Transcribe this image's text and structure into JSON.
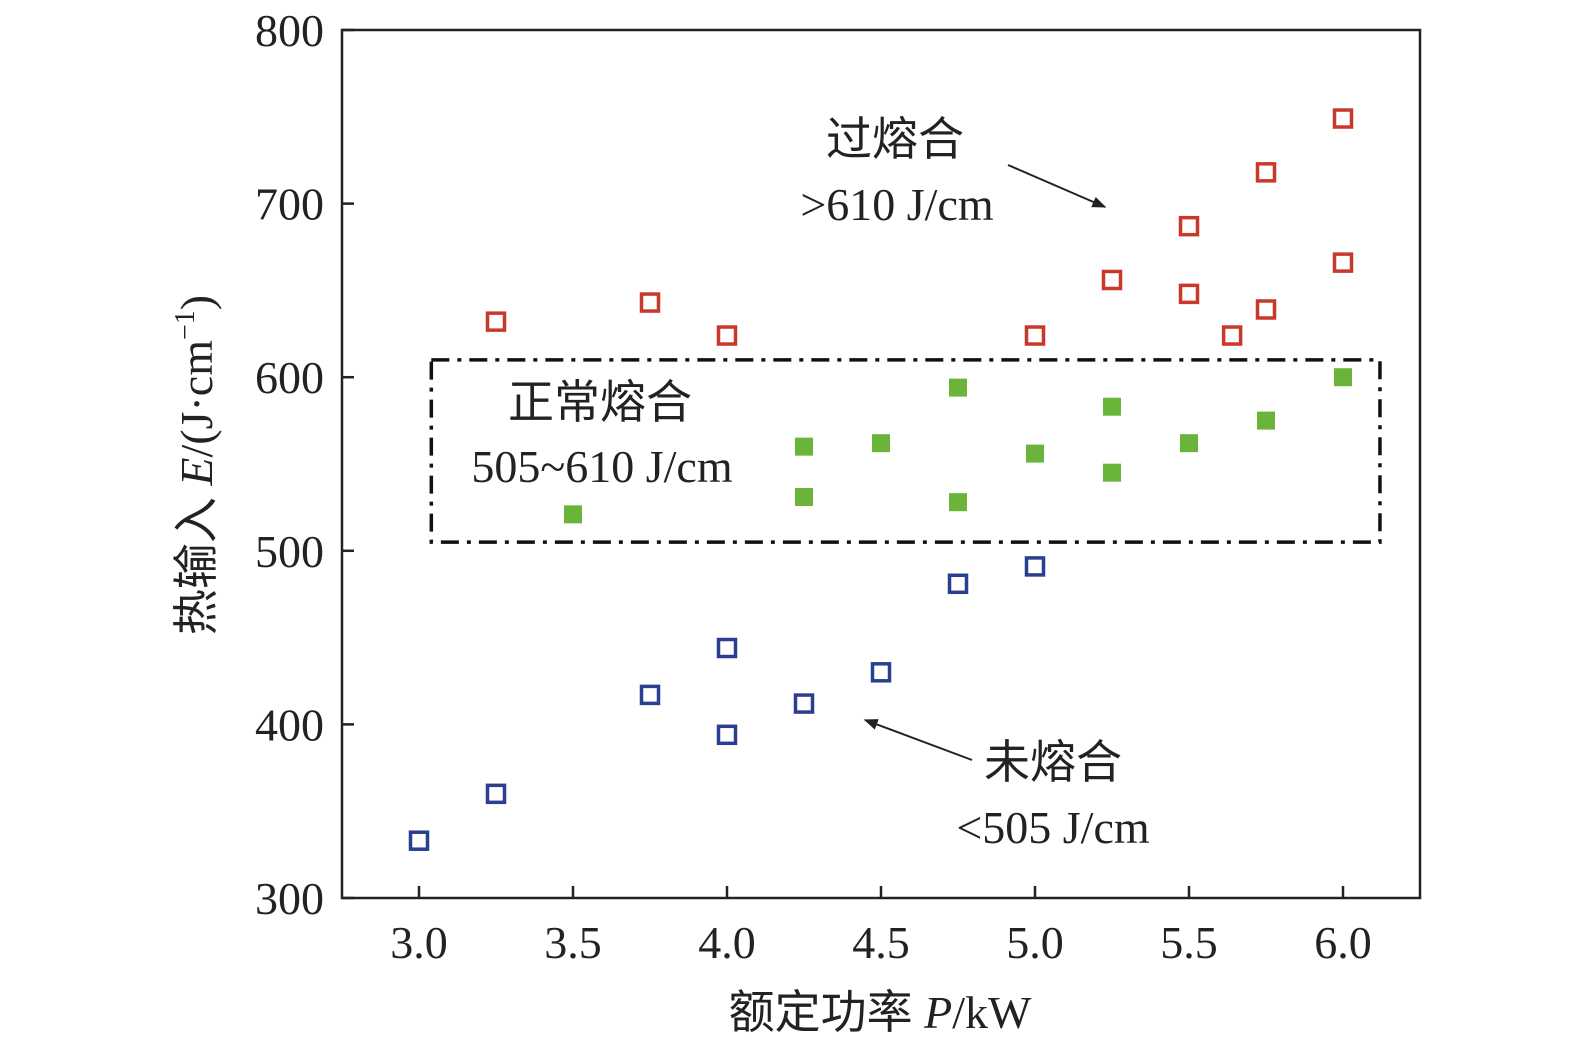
{
  "chart_data": {
    "type": "scatter",
    "xlabel": {
      "prefix": "额定功率 ",
      "var": "P",
      "suffix": "/kW"
    },
    "ylabel": {
      "prefix": "热输入 ",
      "var": "E",
      "suffix": "/(J·cm",
      "sup": "−1",
      "end": ")"
    },
    "xlim": [
      2.75,
      6.25
    ],
    "ylim": [
      300,
      800
    ],
    "xticks": [
      "3.0",
      "3.5",
      "4.0",
      "4.5",
      "5.0",
      "5.5",
      "6.0"
    ],
    "xtick_values": [
      3.0,
      3.5,
      4.0,
      4.5,
      5.0,
      5.5,
      6.0
    ],
    "yticks": [
      "300",
      "400",
      "500",
      "600",
      "700",
      "800"
    ],
    "ytick_values": [
      300,
      400,
      500,
      600,
      700,
      800
    ],
    "grid": false,
    "series": [
      {
        "name": "过熔合",
        "color": "#c8392b",
        "marker": "open-square",
        "x": [
          3.25,
          3.75,
          4.0,
          5.0,
          5.25,
          5.5,
          5.5,
          5.64,
          5.75,
          5.75,
          6.0,
          6.0
        ],
        "y": [
          632,
          643,
          624,
          624,
          656,
          687,
          648,
          624,
          718,
          639,
          749,
          666
        ]
      },
      {
        "name": "正常熔合",
        "color": "#6ab43a",
        "marker": "filled-square",
        "x": [
          3.5,
          4.25,
          4.25,
          4.5,
          4.75,
          4.75,
          5.0,
          5.25,
          5.25,
          5.5,
          5.75,
          6.0
        ],
        "y": [
          521,
          560,
          531,
          562,
          594,
          528,
          556,
          583,
          545,
          562,
          575,
          600
        ]
      },
      {
        "name": "未熔合",
        "color": "#2a3f8f",
        "marker": "open-square",
        "x": [
          3.0,
          3.25,
          3.75,
          4.0,
          4.0,
          4.25,
          4.5,
          4.75,
          5.0
        ],
        "y": [
          333,
          360,
          417,
          444,
          394,
          412,
          430,
          481,
          491
        ]
      }
    ],
    "region": {
      "x": [
        3.04,
        6.12
      ],
      "y": [
        505,
        610
      ]
    },
    "annotations": {
      "over": {
        "title": "过熔合",
        "range": ">610 J/cm"
      },
      "normal": {
        "title": "正常熔合",
        "range": "505~610 J/cm"
      },
      "under": {
        "title": "未熔合",
        "range": "<505 J/cm"
      }
    }
  }
}
